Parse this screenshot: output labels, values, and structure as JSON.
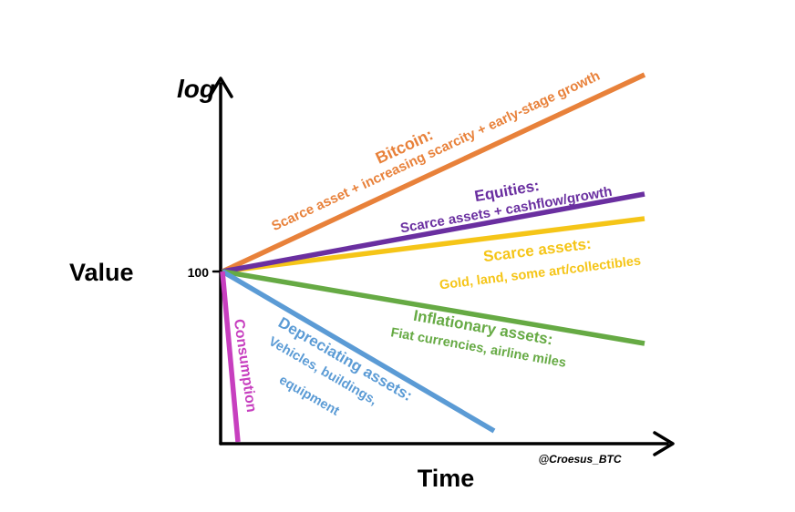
{
  "colors": {
    "bitcoin": "#e8813a",
    "equities": "#6a2fa0",
    "scarce": "#f5c518",
    "inflationary": "#66aa44",
    "depreciating": "#5b9bd5",
    "consumption": "#c73fbf",
    "axis": "#000000"
  },
  "axes": {
    "y_title": "Value",
    "y_scale_label": "log",
    "x_title": "Time",
    "origin_tick": "100",
    "credit": "@Croesus_BTC"
  },
  "series": {
    "bitcoin": {
      "name": "Bitcoin:",
      "description": "Scarce asset + increasing scarcity + early-stage growth"
    },
    "equities": {
      "name": "Equities:",
      "description": "Scarce assets + cashflow/growth"
    },
    "scarce": {
      "name": "Scarce assets:",
      "description": "Gold, land, some art/collectibles"
    },
    "inflationary": {
      "name": "Inflationary assets:",
      "description": "Fiat currencies, airline miles"
    },
    "depreciating": {
      "name": "Depreciating assets:",
      "description_1": "Vehicles, buildings,",
      "description_2": "equipment"
    },
    "consumption": {
      "name": "Consumption"
    }
  }
}
